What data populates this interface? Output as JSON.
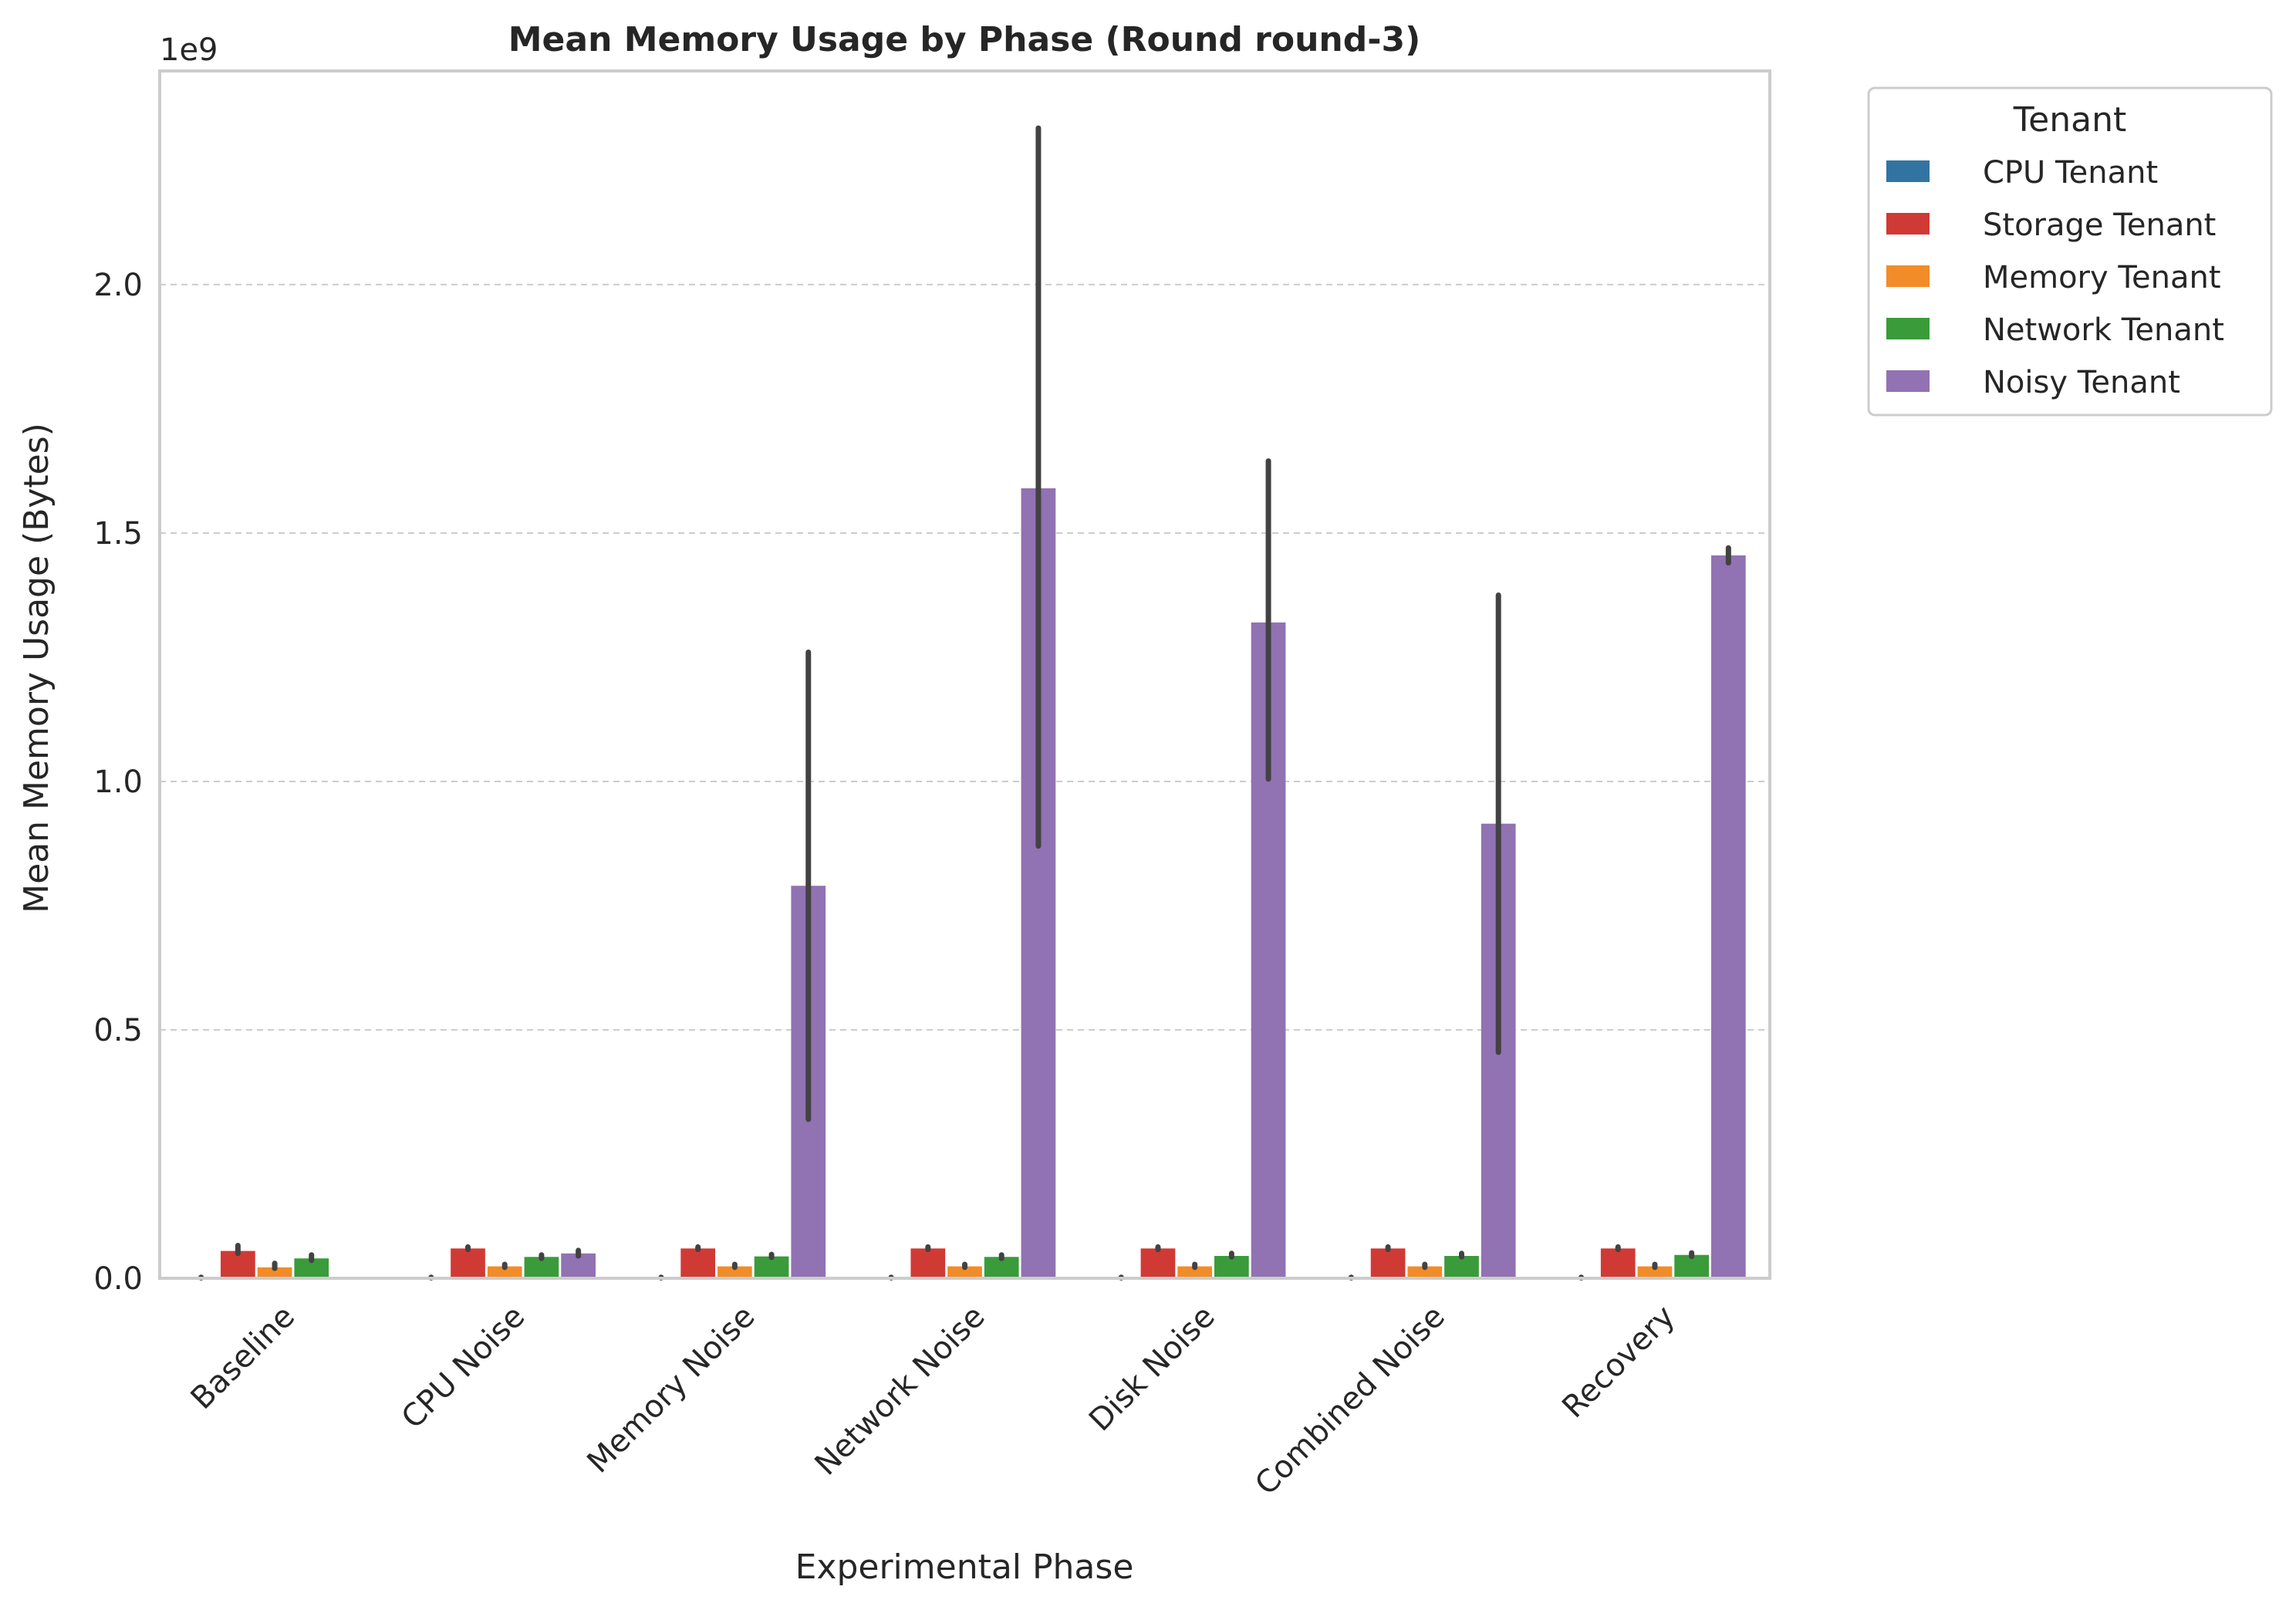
{
  "chart_data": {
    "type": "bar",
    "title": "Mean Memory Usage by Phase (Round round-3)",
    "xlabel": "Experimental Phase",
    "ylabel": "Mean Memory Usage (Bytes)",
    "y_offset_label": "1e9",
    "ylim": [
      0,
      2.43
    ],
    "y_unit_scale": "1e9",
    "yticks": [
      0.0,
      0.5,
      1.0,
      1.5,
      2.0
    ],
    "ytick_labels": [
      "0.0",
      "0.5",
      "1.0",
      "1.5",
      "2.0"
    ],
    "grid": "horizontal dashed",
    "legend_title": "Tenant",
    "legend_position": "outside right, top",
    "categories": [
      "Baseline",
      "CPU Noise",
      "Memory Noise",
      "Network Noise",
      "Disk Noise",
      "Combined Noise",
      "Recovery"
    ],
    "series": [
      {
        "name": "CPU Tenant",
        "color": "#3274a1",
        "values": [
          0.001,
          0.001,
          0.001,
          0.001,
          0.001,
          0.001,
          0.001
        ],
        "error_low": [
          0.001,
          0.001,
          0.001,
          0.001,
          0.001,
          0.001,
          0.001
        ],
        "error_high": [
          0.002,
          0.002,
          0.002,
          0.002,
          0.002,
          0.002,
          0.002
        ]
      },
      {
        "name": "Storage Tenant",
        "color": "#d03a35",
        "values": [
          0.055,
          0.06,
          0.06,
          0.06,
          0.06,
          0.06,
          0.06
        ],
        "error_low": [
          0.05,
          0.058,
          0.058,
          0.058,
          0.058,
          0.058,
          0.058
        ],
        "error_high": [
          0.066,
          0.063,
          0.063,
          0.063,
          0.063,
          0.063,
          0.063
        ]
      },
      {
        "name": "Memory Tenant",
        "color": "#f28c28",
        "values": [
          0.022,
          0.024,
          0.024,
          0.024,
          0.024,
          0.024,
          0.024
        ],
        "error_low": [
          0.02,
          0.022,
          0.022,
          0.022,
          0.022,
          0.022,
          0.022
        ],
        "error_high": [
          0.03,
          0.028,
          0.028,
          0.028,
          0.028,
          0.028,
          0.028
        ]
      },
      {
        "name": "Network Tenant",
        "color": "#3a9b3a",
        "values": [
          0.04,
          0.043,
          0.044,
          0.043,
          0.045,
          0.045,
          0.047
        ],
        "error_low": [
          0.036,
          0.04,
          0.042,
          0.04,
          0.043,
          0.043,
          0.044
        ],
        "error_high": [
          0.047,
          0.047,
          0.048,
          0.047,
          0.05,
          0.05,
          0.051
        ]
      },
      {
        "name": "Noisy Tenant",
        "color": "#9172b2",
        "values": [
          null,
          0.05,
          0.79,
          1.59,
          1.32,
          0.915,
          1.455
        ],
        "error_low": [
          null,
          0.045,
          0.32,
          0.87,
          1.005,
          0.455,
          1.44
        ],
        "error_high": [
          null,
          0.056,
          1.26,
          2.315,
          1.645,
          1.375,
          1.47
        ]
      }
    ]
  }
}
